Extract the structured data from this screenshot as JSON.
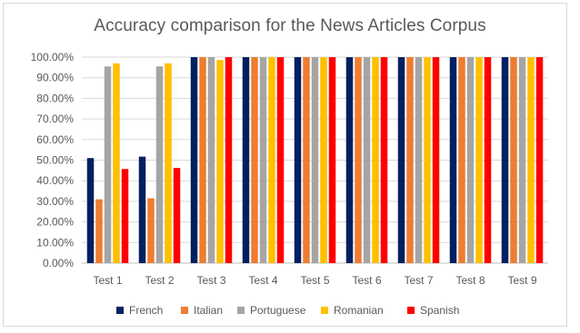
{
  "chart_data": {
    "type": "bar",
    "title": "Accuracy comparison for the News Articles Corpus",
    "xlabel": "",
    "ylabel": "",
    "ylim": [
      0,
      100
    ],
    "yticks": [
      "0.00%",
      "10.00%",
      "20.00%",
      "30.00%",
      "40.00%",
      "50.00%",
      "60.00%",
      "70.00%",
      "80.00%",
      "90.00%",
      "100.00%"
    ],
    "grid": true,
    "legend_position": "bottom",
    "categories": [
      "Test 1",
      "Test 2",
      "Test 3",
      "Test 4",
      "Test 5",
      "Test 6",
      "Test 7",
      "Test 8",
      "Test 9"
    ],
    "series": [
      {
        "name": "French",
        "color": "#002060",
        "values": [
          51,
          51.7,
          100,
          100,
          100,
          100,
          100,
          100,
          100
        ]
      },
      {
        "name": "Italian",
        "color": "#ED7D31",
        "values": [
          31,
          31.5,
          100,
          100,
          100,
          100,
          100,
          100,
          100
        ]
      },
      {
        "name": "Portuguese",
        "color": "#A5A5A5",
        "values": [
          95.5,
          95.5,
          100,
          100,
          100,
          100,
          100,
          100,
          100
        ]
      },
      {
        "name": "Romanian",
        "color": "#FFC000",
        "values": [
          97,
          97,
          98.6,
          100,
          100,
          100,
          100,
          100,
          100
        ]
      },
      {
        "name": "Spanish",
        "color": "#FF0000",
        "values": [
          45.7,
          46.2,
          100,
          100,
          100,
          100,
          100,
          100,
          100
        ]
      }
    ]
  }
}
